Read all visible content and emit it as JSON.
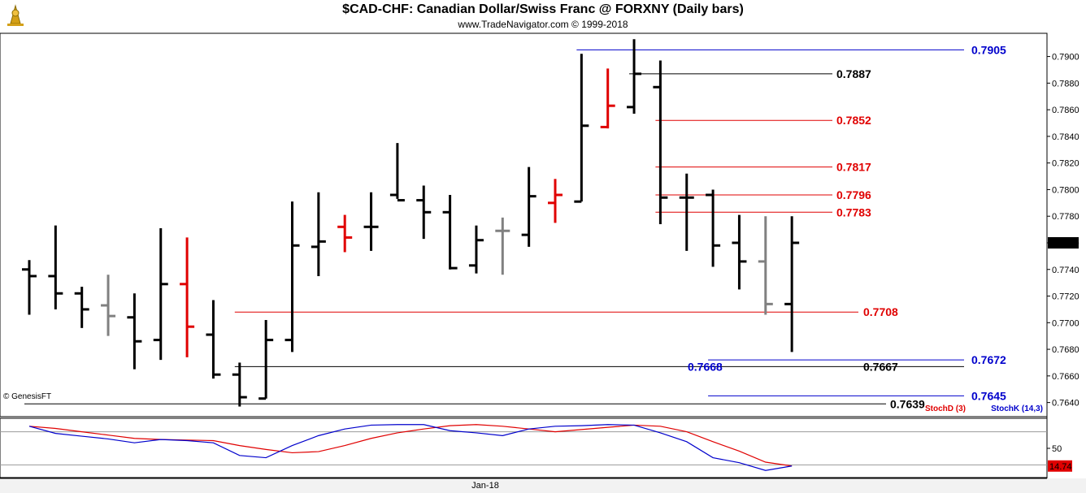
{
  "header": {
    "title": "$CAD-CHF:  Canadian Dollar/Swiss Franc @ FORXNY  (Daily bars)",
    "subtitle": "www.TradeNavigator.com © 1999-2018"
  },
  "colors": {
    "up_down_bar": "#000000",
    "neutral_bar": "#808080",
    "highlight_bar": "#e00000",
    "blue_level": "#0000cc",
    "red_level": "#e00000",
    "black_level": "#000000",
    "stoch_d": "#e00000",
    "stoch_k": "#0000cc",
    "last_price_badge": "#000000",
    "stoch_badge": "#e00000"
  },
  "chart_data": [
    {
      "type": "ohlc",
      "ylim": [
        0.763,
        0.7915
      ],
      "y_ticks": [
        "0.7900",
        "0.7880",
        "0.7860",
        "0.7840",
        "0.7820",
        "0.7800",
        "0.7780",
        "0.7760",
        "0.7740",
        "0.7720",
        "0.7700",
        "0.7680",
        "0.7660",
        "0.7640"
      ],
      "x_label": "Jan-18",
      "watermark": "© GenesisFT",
      "last_price": "0.7760",
      "bars": [
        {
          "o": 0.774,
          "h": 0.7747,
          "l": 0.7706,
          "c": 0.7735,
          "color": "black"
        },
        {
          "o": 0.7735,
          "h": 0.7773,
          "l": 0.771,
          "c": 0.7722,
          "color": "black"
        },
        {
          "o": 0.7722,
          "h": 0.7727,
          "l": 0.7696,
          "c": 0.771,
          "color": "black"
        },
        {
          "o": 0.7713,
          "h": 0.7736,
          "l": 0.769,
          "c": 0.7705,
          "color": "gray"
        },
        {
          "o": 0.7704,
          "h": 0.7722,
          "l": 0.7665,
          "c": 0.7686,
          "color": "black"
        },
        {
          "o": 0.7687,
          "h": 0.7771,
          "l": 0.7672,
          "c": 0.7729,
          "color": "black"
        },
        {
          "o": 0.7729,
          "h": 0.7764,
          "l": 0.7674,
          "c": 0.7697,
          "color": "red"
        },
        {
          "o": 0.7691,
          "h": 0.7717,
          "l": 0.7658,
          "c": 0.7661,
          "color": "black"
        },
        {
          "o": 0.7661,
          "h": 0.767,
          "l": 0.7637,
          "c": 0.7644,
          "color": "black"
        },
        {
          "o": 0.7643,
          "h": 0.7702,
          "l": 0.7643,
          "c": 0.7687,
          "color": "black"
        },
        {
          "o": 0.7687,
          "h": 0.7791,
          "l": 0.7678,
          "c": 0.7758,
          "color": "black"
        },
        {
          "o": 0.7757,
          "h": 0.7798,
          "l": 0.7735,
          "c": 0.7761,
          "color": "black"
        },
        {
          "o": 0.7772,
          "h": 0.7781,
          "l": 0.7753,
          "c": 0.7764,
          "color": "red"
        },
        {
          "o": 0.7772,
          "h": 0.7798,
          "l": 0.7754,
          "c": 0.7772,
          "color": "black"
        },
        {
          "o": 0.7796,
          "h": 0.7835,
          "l": 0.7793,
          "c": 0.7792,
          "color": "black"
        },
        {
          "o": 0.7792,
          "h": 0.7803,
          "l": 0.7763,
          "c": 0.7783,
          "color": "black"
        },
        {
          "o": 0.7783,
          "h": 0.7796,
          "l": 0.774,
          "c": 0.7741,
          "color": "black"
        },
        {
          "o": 0.7743,
          "h": 0.7773,
          "l": 0.7737,
          "c": 0.7762,
          "color": "black"
        },
        {
          "o": 0.7769,
          "h": 0.7779,
          "l": 0.7736,
          "c": 0.7769,
          "color": "gray"
        },
        {
          "o": 0.7766,
          "h": 0.7817,
          "l": 0.7757,
          "c": 0.7795,
          "color": "black"
        },
        {
          "o": 0.779,
          "h": 0.7808,
          "l": 0.7775,
          "c": 0.7796,
          "color": "red"
        },
        {
          "o": 0.7791,
          "h": 0.7902,
          "l": 0.7791,
          "c": 0.7848,
          "color": "black"
        },
        {
          "o": 0.7847,
          "h": 0.7891,
          "l": 0.7846,
          "c": 0.7863,
          "color": "red"
        },
        {
          "o": 0.7862,
          "h": 0.7913,
          "l": 0.7857,
          "c": 0.7887,
          "color": "black"
        },
        {
          "o": 0.7877,
          "h": 0.7897,
          "l": 0.7774,
          "c": 0.7794,
          "color": "black"
        },
        {
          "o": 0.7794,
          "h": 0.7812,
          "l": 0.7754,
          "c": 0.7794,
          "color": "black"
        },
        {
          "o": 0.7796,
          "h": 0.78,
          "l": 0.7742,
          "c": 0.7758,
          "color": "black"
        },
        {
          "o": 0.776,
          "h": 0.7781,
          "l": 0.7725,
          "c": 0.7746,
          "color": "black"
        },
        {
          "o": 0.7746,
          "h": 0.778,
          "l": 0.7706,
          "c": 0.7714,
          "color": "gray"
        },
        {
          "o": 0.7714,
          "h": 0.778,
          "l": 0.7678,
          "c": 0.776,
          "color": "black"
        }
      ],
      "levels": [
        {
          "value": 0.7905,
          "label": "0.7905",
          "color": "blue",
          "from_bar": 21,
          "label_pos": "right"
        },
        {
          "value": 0.7887,
          "label": "0.7887",
          "color": "black",
          "from_bar": 23,
          "label_pos": "mid"
        },
        {
          "value": 0.7852,
          "label": "0.7852",
          "color": "red",
          "from_bar": 24,
          "label_pos": "mid"
        },
        {
          "value": 0.7817,
          "label": "0.7817",
          "color": "red",
          "from_bar": 24,
          "label_pos": "mid"
        },
        {
          "value": 0.7796,
          "label": "0.7796",
          "color": "red",
          "from_bar": 24,
          "label_pos": "mid"
        },
        {
          "value": 0.7783,
          "label": "0.7783",
          "color": "red",
          "from_bar": 24,
          "label_pos": "mid"
        },
        {
          "value": 0.7708,
          "label": "0.7708",
          "color": "red",
          "from_bar": 8,
          "label_pos": "mid2"
        },
        {
          "value": 0.7672,
          "label": "0.7672",
          "color": "blue",
          "from_bar": 26,
          "label_pos": "right"
        },
        {
          "value": 0.7667,
          "label": "0.7667",
          "color": "black",
          "from_bar": 8,
          "label_pos": "mid3"
        },
        {
          "value": 0.7645,
          "label": "0.7645",
          "color": "blue",
          "from_bar": 26,
          "label_pos": "right"
        },
        {
          "value": 0.7639,
          "label": "0.7639",
          "color": "black",
          "from_bar": 0,
          "label_pos": "mid4"
        }
      ],
      "extra_label": {
        "text": "0.7668",
        "color": "blue"
      }
    },
    {
      "type": "line",
      "ylim": [
        0,
        100
      ],
      "y_ticks": [
        "50"
      ],
      "legend": [
        "StochD (3)",
        "StochK (14,3)"
      ],
      "last_value": "14.74",
      "series": [
        {
          "name": "StochD (3)",
          "color": "red",
          "values": [
            90,
            86,
            80,
            74,
            68,
            66,
            65,
            64,
            55,
            48,
            42,
            44,
            55,
            68,
            78,
            85,
            91,
            93,
            90,
            85,
            80,
            84,
            88,
            92,
            90,
            80,
            62,
            45,
            25,
            18
          ]
        },
        {
          "name": "StochK (14,3)",
          "color": "blue",
          "values": [
            90,
            77,
            72,
            67,
            60,
            66,
            64,
            60,
            37,
            33,
            55,
            73,
            85,
            92,
            93,
            93,
            82,
            78,
            73,
            85,
            90,
            91,
            93,
            92,
            78,
            62,
            33,
            24,
            10,
            18
          ]
        }
      ]
    }
  ]
}
